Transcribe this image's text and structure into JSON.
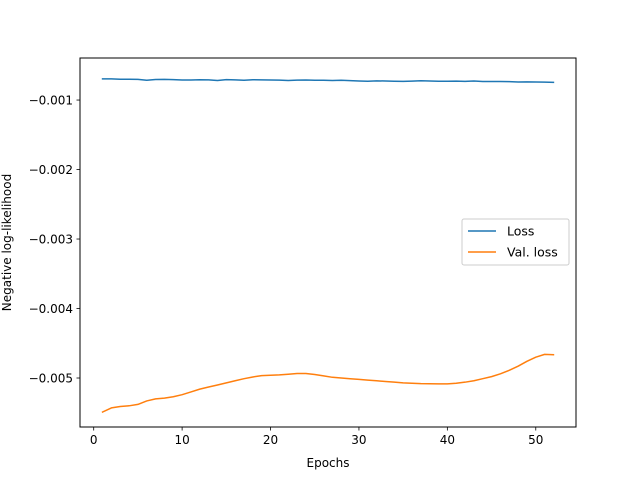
{
  "chart_data": {
    "type": "line",
    "title": "",
    "xlabel": "Epochs",
    "ylabel": "Negative log-likelihood",
    "xlim": [
      -1.55,
      54.55
    ],
    "ylim": [
      -0.005705,
      -0.000395
    ],
    "xticks": [
      0,
      10,
      20,
      30,
      40,
      50
    ],
    "yticks": [
      -0.001,
      -0.002,
      -0.003,
      -0.004,
      -0.005
    ],
    "ytick_labels": [
      "−0.001",
      "−0.002",
      "−0.003",
      "−0.004",
      "−0.005"
    ],
    "grid": false,
    "legend_position": "center-right",
    "x": [
      1,
      2,
      3,
      4,
      5,
      6,
      7,
      8,
      9,
      10,
      11,
      12,
      13,
      14,
      15,
      16,
      17,
      18,
      19,
      20,
      21,
      22,
      23,
      24,
      25,
      26,
      27,
      28,
      29,
      30,
      31,
      32,
      33,
      34,
      35,
      36,
      37,
      38,
      39,
      40,
      41,
      42,
      43,
      44,
      45,
      46,
      47,
      48,
      49,
      50,
      51,
      52
    ],
    "series": [
      {
        "name": "Loss",
        "color": "#1f77b4",
        "values": [
          -0.000695,
          -0.000695,
          -0.0007,
          -0.0007,
          -0.000702,
          -0.000715,
          -0.000705,
          -0.000703,
          -0.000706,
          -0.000712,
          -0.000712,
          -0.000708,
          -0.00071,
          -0.000718,
          -0.000706,
          -0.00071,
          -0.000716,
          -0.000708,
          -0.00071,
          -0.000712,
          -0.000714,
          -0.000718,
          -0.000714,
          -0.000712,
          -0.000715,
          -0.000716,
          -0.000718,
          -0.000716,
          -0.00072,
          -0.000726,
          -0.00073,
          -0.000724,
          -0.000726,
          -0.00073,
          -0.000732,
          -0.000728,
          -0.000722,
          -0.000726,
          -0.00073,
          -0.00073,
          -0.000728,
          -0.000732,
          -0.000726,
          -0.000733,
          -0.000733,
          -0.000733,
          -0.000735,
          -0.00074,
          -0.000738,
          -0.00074,
          -0.000742,
          -0.000745
        ]
      },
      {
        "name": "Val. loss",
        "color": "#ff7f0e",
        "values": [
          -0.00549,
          -0.00543,
          -0.00541,
          -0.0054,
          -0.00538,
          -0.00533,
          -0.0053,
          -0.00529,
          -0.00527,
          -0.00524,
          -0.0052,
          -0.00516,
          -0.00513,
          -0.0051,
          -0.00507,
          -0.00504,
          -0.00501,
          -0.004985,
          -0.004965,
          -0.00496,
          -0.004955,
          -0.004945,
          -0.004935,
          -0.004935,
          -0.00495,
          -0.00497,
          -0.00499,
          -0.005,
          -0.00501,
          -0.00502,
          -0.00503,
          -0.00504,
          -0.00505,
          -0.00506,
          -0.00507,
          -0.005075,
          -0.00508,
          -0.005082,
          -0.005085,
          -0.005085,
          -0.005075,
          -0.00506,
          -0.00504,
          -0.00501,
          -0.00498,
          -0.00494,
          -0.00489,
          -0.00483,
          -0.00476,
          -0.0047,
          -0.00466,
          -0.004665
        ]
      }
    ]
  }
}
